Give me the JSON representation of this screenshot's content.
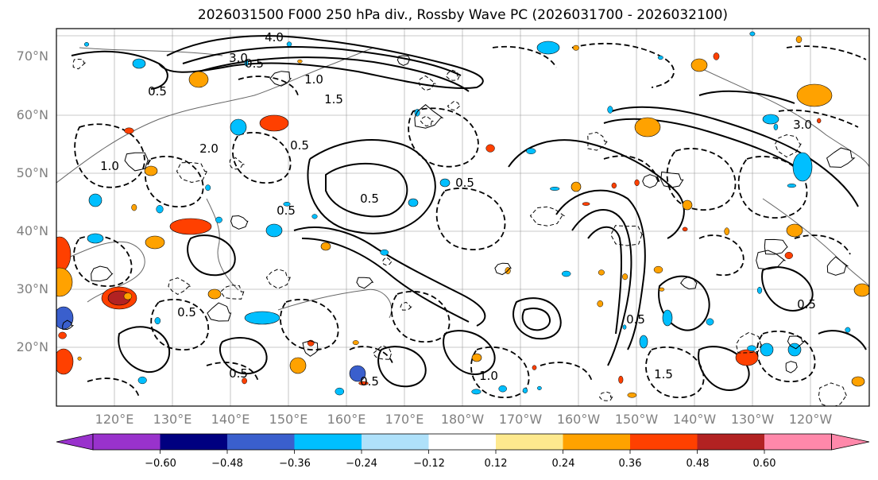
{
  "title": "2026031500 F000 250 hPa div., Rossby Wave PC (2026031700 - 2026032100)",
  "lat_labels": [
    "70°N",
    "60°N",
    "50°N",
    "40°N",
    "30°N",
    "20°N"
  ],
  "lon_labels": [
    "120°E",
    "130°E",
    "140°E",
    "150°E",
    "160°E",
    "170°E",
    "180°W",
    "170°W",
    "160°W",
    "150°W",
    "140°W",
    "130°W",
    "120°W"
  ],
  "colorbar": {
    "ticks": [
      "−0.60",
      "−0.48",
      "−0.36",
      "−0.24",
      "−0.12",
      "0.12",
      "0.24",
      "0.36",
      "0.48",
      "0.60"
    ],
    "colors": [
      "#9932cc",
      "#000080",
      "#3a5fcd",
      "#00bfff",
      "#afe1fa",
      "#ffffff",
      "#fee98e",
      "#ffa200",
      "#ff4000",
      "#b22222",
      "#ff88aa"
    ]
  },
  "contour_labels": [
    "4.0",
    "3.0",
    "1.0",
    "0.5",
    "1.5",
    "0.5",
    "0.5",
    "2.0",
    "3.0",
    "0.5",
    "0.5",
    "0.5",
    "1.0",
    "0.5",
    "0.5",
    "1.5",
    "0.5",
    "0.5",
    "1.0",
    "0.5"
  ],
  "fill_colors": {
    "orange": "#ffa200",
    "red": "#ff4000",
    "darkred": "#b22222",
    "cyan": "#00bfff",
    "blue": "#3a5fcd"
  }
}
